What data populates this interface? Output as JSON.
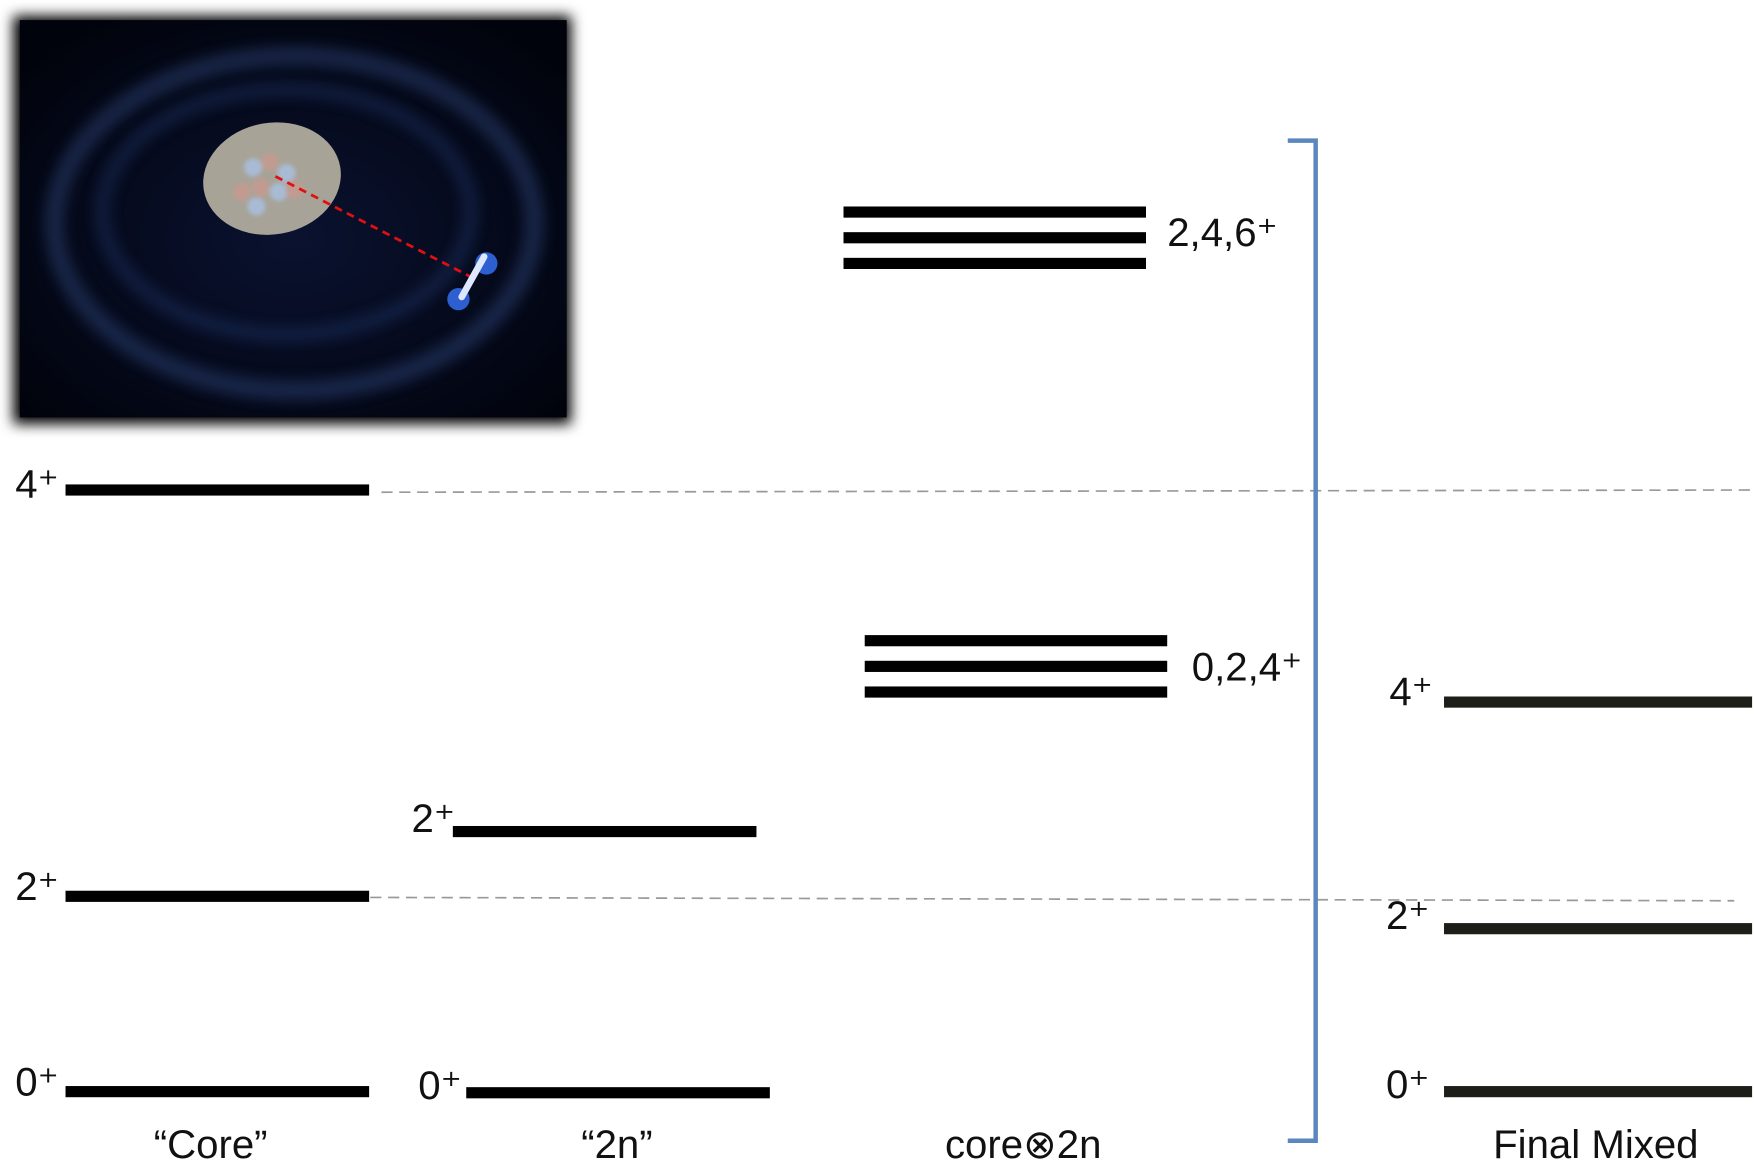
{
  "columns": [
    {
      "label": "“Core”",
      "levels": [
        "0⁺",
        "2⁺",
        "4⁺"
      ]
    },
    {
      "label": "“2n”",
      "levels": [
        "0⁺",
        "2⁺"
      ]
    },
    {
      "label": "core⊗2n",
      "levels": [
        "0,2,4⁺",
        "2,4,6⁺"
      ]
    },
    {
      "label": "Final Mixed",
      "levels": [
        "0⁺",
        "2⁺",
        "4⁺"
      ]
    }
  ]
}
